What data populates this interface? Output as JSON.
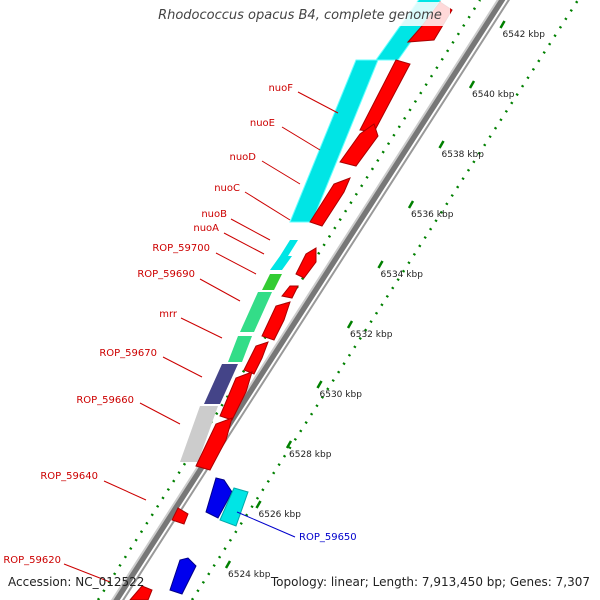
{
  "title": "Rhodococcus opacus B4, complete genome",
  "accession": "Accession: NC_012522",
  "topology": "Topology: linear; Length: 7,913,450 bp; Genes: 7,307",
  "colors": {
    "forward_strand": "#ff0000",
    "reverse_strand": "#0000ff",
    "label_red": "#cc0000",
    "label_blue": "#0000cc",
    "tick": "#008000"
  },
  "scale": {
    "unit": "kbp",
    "ticks": [
      {
        "value": 6524,
        "label": "6524 kbp"
      },
      {
        "value": 6526,
        "label": "6526 kbp"
      },
      {
        "value": 6528,
        "label": "6528 kbp"
      },
      {
        "value": 6530,
        "label": "6530 kbp"
      },
      {
        "value": 6532,
        "label": "6532 kbp"
      },
      {
        "value": 6534,
        "label": "6534 kbp"
      },
      {
        "value": 6536,
        "label": "6536 kbp"
      },
      {
        "value": 6538,
        "label": "6538 kbp"
      },
      {
        "value": 6540,
        "label": "6540 kbp"
      },
      {
        "value": 6542,
        "label": "6542 kbp"
      }
    ]
  },
  "gene_labels": [
    {
      "name": "nuoF",
      "color": "red"
    },
    {
      "name": "nuoE",
      "color": "red"
    },
    {
      "name": "nuoD",
      "color": "red"
    },
    {
      "name": "nuoC",
      "color": "red"
    },
    {
      "name": "nuoB",
      "color": "red"
    },
    {
      "name": "nuoA",
      "color": "red"
    },
    {
      "name": "ROP_59700",
      "color": "red"
    },
    {
      "name": "ROP_59690",
      "color": "red"
    },
    {
      "name": "mrr",
      "color": "red"
    },
    {
      "name": "ROP_59670",
      "color": "red"
    },
    {
      "name": "ROP_59660",
      "color": "red"
    },
    {
      "name": "ROP_59640",
      "color": "red"
    },
    {
      "name": "ROP_59650",
      "color": "blue"
    },
    {
      "name": "ROP_59620",
      "color": "red"
    }
  ]
}
